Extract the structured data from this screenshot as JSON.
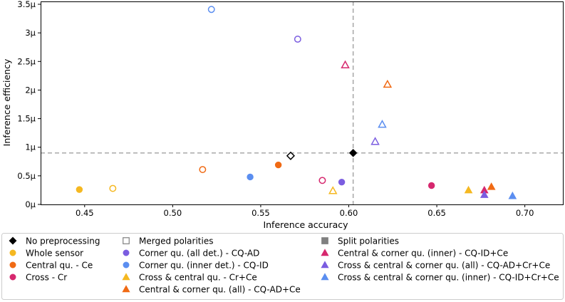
{
  "chart_data": {
    "type": "scatter",
    "xlabel": "Inference accuracy",
    "ylabel": "Inference efficiency",
    "xlim": [
      0.425,
      0.722
    ],
    "ylim": [
      0,
      3.55
    ],
    "xticks": [
      {
        "value": 0.45,
        "label": "0.45"
      },
      {
        "value": 0.5,
        "label": "0.50"
      },
      {
        "value": 0.55,
        "label": "0.55"
      },
      {
        "value": 0.6,
        "label": "0.60"
      },
      {
        "value": 0.65,
        "label": "0.65"
      },
      {
        "value": 0.7,
        "label": "0.70"
      }
    ],
    "yticks": [
      {
        "value": 0,
        "label": "0µ"
      },
      {
        "value": 0.5,
        "label": "0.5µ"
      },
      {
        "value": 1.0,
        "label": "1µ"
      },
      {
        "value": 1.5,
        "label": "1.5µ"
      },
      {
        "value": 2.0,
        "label": "2µ"
      },
      {
        "value": 2.5,
        "label": "2.5µ"
      },
      {
        "value": 3.0,
        "label": "3µ"
      },
      {
        "value": 3.5,
        "label": "3.5µ"
      }
    ],
    "reference_lines": {
      "x": 0.6025,
      "y": 0.9,
      "style": "dashed",
      "color": "#aaaaaa"
    },
    "points": [
      {
        "name": "No preprocessing - split",
        "x": 0.6025,
        "y": 0.9,
        "marker": "diamond",
        "filled": true,
        "color": "#000000"
      },
      {
        "name": "No preprocessing - merged",
        "x": 0.567,
        "y": 0.85,
        "marker": "diamond",
        "filled": false,
        "color": "#000000"
      },
      {
        "name": "Whole sensor - split",
        "x": 0.447,
        "y": 0.26,
        "marker": "circle",
        "filled": true,
        "color": "#f5b821"
      },
      {
        "name": "Whole sensor - merged",
        "x": 0.466,
        "y": 0.28,
        "marker": "circle",
        "filled": false,
        "color": "#f5b821"
      },
      {
        "name": "Central qu. - Ce - split",
        "x": 0.56,
        "y": 0.69,
        "marker": "circle",
        "filled": true,
        "color": "#f06a14"
      },
      {
        "name": "Central qu. - Ce - merged",
        "x": 0.517,
        "y": 0.61,
        "marker": "circle",
        "filled": false,
        "color": "#f06a14"
      },
      {
        "name": "Cross - Cr - split",
        "x": 0.647,
        "y": 0.33,
        "marker": "circle",
        "filled": true,
        "color": "#d6286e"
      },
      {
        "name": "Cross - Cr - merged",
        "x": 0.585,
        "y": 0.42,
        "marker": "circle",
        "filled": false,
        "color": "#d6286e"
      },
      {
        "name": "Corner qu. (all det.) - CQ-AD - split",
        "x": 0.596,
        "y": 0.39,
        "marker": "circle",
        "filled": true,
        "color": "#7b5de0"
      },
      {
        "name": "Corner qu. (all det.) - CQ-AD - merged",
        "x": 0.571,
        "y": 2.89,
        "marker": "circle",
        "filled": false,
        "color": "#7b5de0"
      },
      {
        "name": "Corner qu. (inner det.) - CQ-ID - split",
        "x": 0.544,
        "y": 0.48,
        "marker": "circle",
        "filled": true,
        "color": "#5b8ef0"
      },
      {
        "name": "Corner qu. (inner det.) - CQ-ID - merged",
        "x": 0.522,
        "y": 3.41,
        "marker": "circle",
        "filled": false,
        "color": "#5b8ef0"
      },
      {
        "name": "Cross & central qu. - Cr+Ce - split",
        "x": 0.668,
        "y": 0.25,
        "marker": "triangle",
        "filled": true,
        "color": "#f5b821"
      },
      {
        "name": "Cross & central qu. - Cr+Ce - merged",
        "x": 0.591,
        "y": 0.24,
        "marker": "triangle",
        "filled": false,
        "color": "#f5b821"
      },
      {
        "name": "Central & corner qu. (all) - CQ-AD+Ce - split",
        "x": 0.681,
        "y": 0.31,
        "marker": "triangle",
        "filled": true,
        "color": "#f06a14"
      },
      {
        "name": "Central & corner qu. (all) - CQ-AD+Ce - merged",
        "x": 0.622,
        "y": 2.1,
        "marker": "triangle",
        "filled": false,
        "color": "#f06a14"
      },
      {
        "name": "Central & corner qu. (inner) - CQ-ID+Ce - split",
        "x": 0.677,
        "y": 0.25,
        "marker": "triangle",
        "filled": true,
        "color": "#d6286e"
      },
      {
        "name": "Central & corner qu. (inner) - CQ-ID+Ce - merged",
        "x": 0.598,
        "y": 2.44,
        "marker": "triangle",
        "filled": false,
        "color": "#d6286e"
      },
      {
        "name": "Cross & central & corner qu. (all) - CQ-AD+Cr+Ce - split",
        "x": 0.677,
        "y": 0.17,
        "marker": "triangle",
        "filled": true,
        "color": "#7b5de0"
      },
      {
        "name": "Cross & central & corner qu. (all) - CQ-AD+Cr+Ce - merged",
        "x": 0.615,
        "y": 1.1,
        "marker": "triangle",
        "filled": false,
        "color": "#7b5de0"
      },
      {
        "name": "Cross & central & corner qu. (inner) - CQ-ID+Cr+Ce - split",
        "x": 0.693,
        "y": 0.15,
        "marker": "triangle",
        "filled": true,
        "color": "#5b8ef0"
      },
      {
        "name": "Cross & central & corner qu. (inner) - CQ-ID+Cr+Ce - merged",
        "x": 0.619,
        "y": 1.4,
        "marker": "triangle",
        "filled": false,
        "color": "#5b8ef0"
      }
    ],
    "legend": {
      "placement": "bottom",
      "entries": [
        {
          "label": "No preprocessing",
          "marker": "diamond",
          "color": "#000000"
        },
        {
          "label": "Whole sensor",
          "marker": "circle",
          "color": "#f5b821"
        },
        {
          "label": "Central qu. - Ce",
          "marker": "circle",
          "color": "#f06a14"
        },
        {
          "label": "Cross - Cr",
          "marker": "circle",
          "color": "#d6286e"
        },
        {
          "label": "Merged polarities",
          "marker": "square-open",
          "color": "#808080"
        },
        {
          "label": "Corner qu. (all det.) - CQ-AD",
          "marker": "circle",
          "color": "#7b5de0"
        },
        {
          "label": "Corner qu. (inner det.) - CQ-ID",
          "marker": "circle",
          "color": "#5b8ef0"
        },
        {
          "label": "Cross & central qu. - Cr+Ce",
          "marker": "triangle",
          "color": "#f5b821"
        },
        {
          "label": "Central & corner qu. (all) - CQ-AD+Ce",
          "marker": "triangle",
          "color": "#f06a14"
        },
        {
          "label": "Split polarities",
          "marker": "square",
          "color": "#808080"
        },
        {
          "label": "Central & corner qu. (inner) - CQ-ID+Ce",
          "marker": "triangle",
          "color": "#d6286e"
        },
        {
          "label": "Cross & central & corner qu. (all) - CQ-AD+Cr+Ce",
          "marker": "triangle",
          "color": "#7b5de0"
        },
        {
          "label": "Cross & central & corner qu. (inner) - CQ-ID+Cr+Ce",
          "marker": "triangle",
          "color": "#5b8ef0"
        }
      ]
    }
  }
}
